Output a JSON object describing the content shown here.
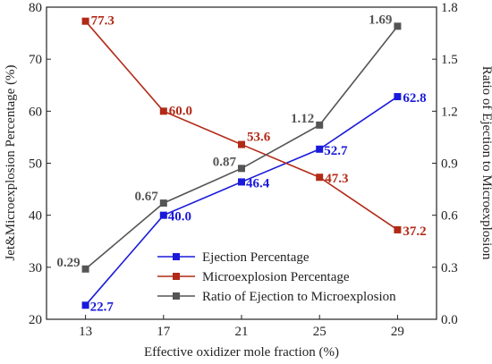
{
  "chart_data": {
    "type": "line",
    "x": [
      13,
      17,
      21,
      25,
      29
    ],
    "xlabel": "Effective oxidizer mole fraction (%)",
    "ylabel_left": "Jet&Microexplosion Percentage (%)",
    "ylabel_right": "Ratio of Ejection to Microexplosion",
    "ylim_left": [
      20,
      80
    ],
    "ylim_right": [
      0.0,
      1.8
    ],
    "yticks_left": [
      "20",
      "30",
      "40",
      "50",
      "60",
      "70",
      "80"
    ],
    "yticks_right": [
      "0.0",
      "0.3",
      "0.6",
      "0.9",
      "1.2",
      "1.5",
      "1.8"
    ],
    "xticks": [
      "13",
      "17",
      "21",
      "25",
      "29"
    ],
    "grid": false,
    "legend_position": "lower-center",
    "series": [
      {
        "name": "Ejection Percentage",
        "axis": "left",
        "color": "#1a1adb",
        "values": [
          22.7,
          40.0,
          46.4,
          52.7,
          62.8
        ],
        "labels": [
          "22.7",
          "40.0",
          "46.4",
          "52.7",
          "62.8"
        ]
      },
      {
        "name": "Microexplosion Percentage",
        "axis": "left",
        "color": "#b22a17",
        "values": [
          77.3,
          60.0,
          53.6,
          47.3,
          37.2
        ],
        "labels": [
          "77.3",
          "60.0",
          "53.6",
          "47.3",
          "37.2"
        ]
      },
      {
        "name": "Ratio of Ejection to Microexplosion",
        "axis": "right",
        "color": "#555555",
        "values": [
          0.29,
          0.67,
          0.87,
          1.12,
          1.69
        ],
        "labels": [
          "0.29",
          "0.67",
          "0.87",
          "1.12",
          "1.69"
        ]
      }
    ]
  }
}
